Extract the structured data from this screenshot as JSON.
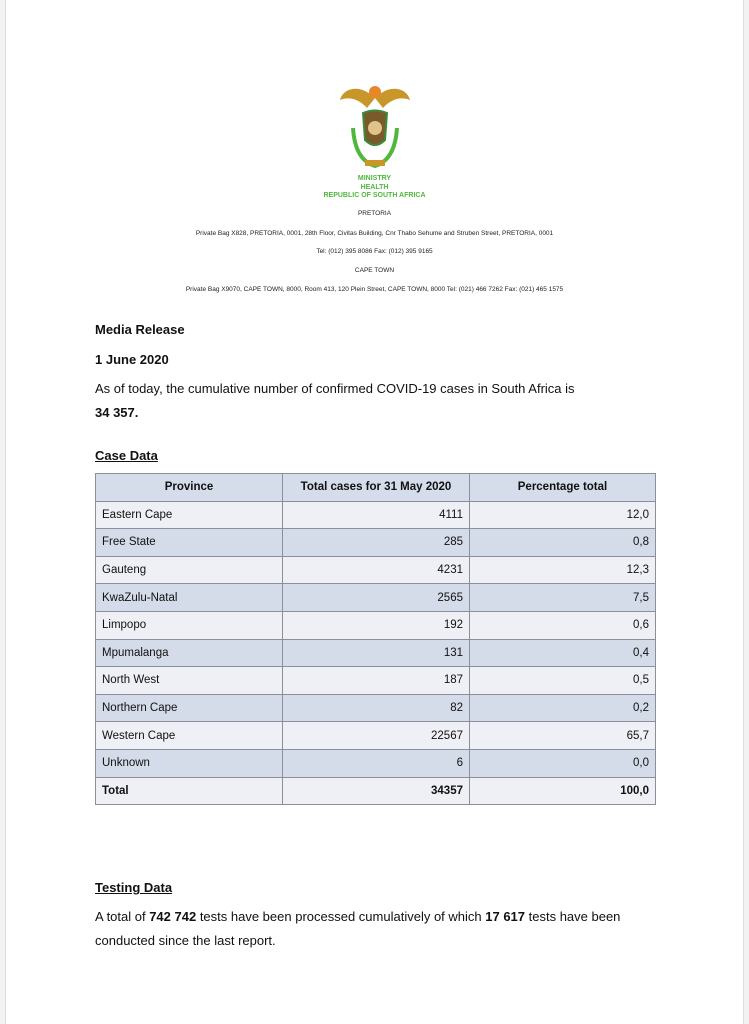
{
  "header": {
    "ministry_lines": [
      "MINISTRY",
      "HEALTH",
      "REPUBLIC OF SOUTH AFRICA"
    ],
    "pretoria_label": "PRETORIA",
    "pretoria_address": "Private Bag X828, PRETORIA, 0001, 28th Floor, Civitas Building, Cnr Thabo Sehume and Struben Street, PRETORIA, 0001",
    "pretoria_phone": "Tel: (012) 395 8086 Fax: (012) 395 9165",
    "capetown_label": "CAPE TOWN",
    "capetown_address": "Private Bag X9070, CAPE TOWN, 8000, Room 413, 120 Plein Street, CAPE TOWN, 8000 Tel: (021) 466 7262 Fax: (021) 465 1575"
  },
  "release": {
    "title": "Media Release",
    "date": "1 June 2020",
    "intro": "As of today, the cumulative number of confirmed COVID-19 cases in South Africa is",
    "total": "34 357."
  },
  "case_data": {
    "heading": "Case Data",
    "columns": [
      "Province",
      "Total cases for  31 May 2020",
      "Percentage total"
    ],
    "rows": [
      [
        "Eastern Cape",
        "4111",
        "12,0"
      ],
      [
        "Free State",
        "285",
        "0,8"
      ],
      [
        "Gauteng",
        "4231",
        "12,3"
      ],
      [
        "KwaZulu-Natal",
        "2565",
        "7,5"
      ],
      [
        "Limpopo",
        "192",
        "0,6"
      ],
      [
        "Mpumalanga",
        "131",
        "0,4"
      ],
      [
        "North West",
        "187",
        "0,5"
      ],
      [
        "Northern Cape",
        "82",
        "0,2"
      ],
      [
        "Western Cape",
        "22567",
        "65,7"
      ],
      [
        "Unknown",
        "6",
        "0,0"
      ]
    ],
    "total": [
      "Total",
      "34357",
      "100,0"
    ]
  },
  "testing": {
    "heading": "Testing Data",
    "text_1": "A total of ",
    "tests_total": "742 742",
    "text_2": " tests have been processed cumulatively of which ",
    "tests_new": "17 617",
    "text_3": " tests have been conducted since the last report."
  }
}
